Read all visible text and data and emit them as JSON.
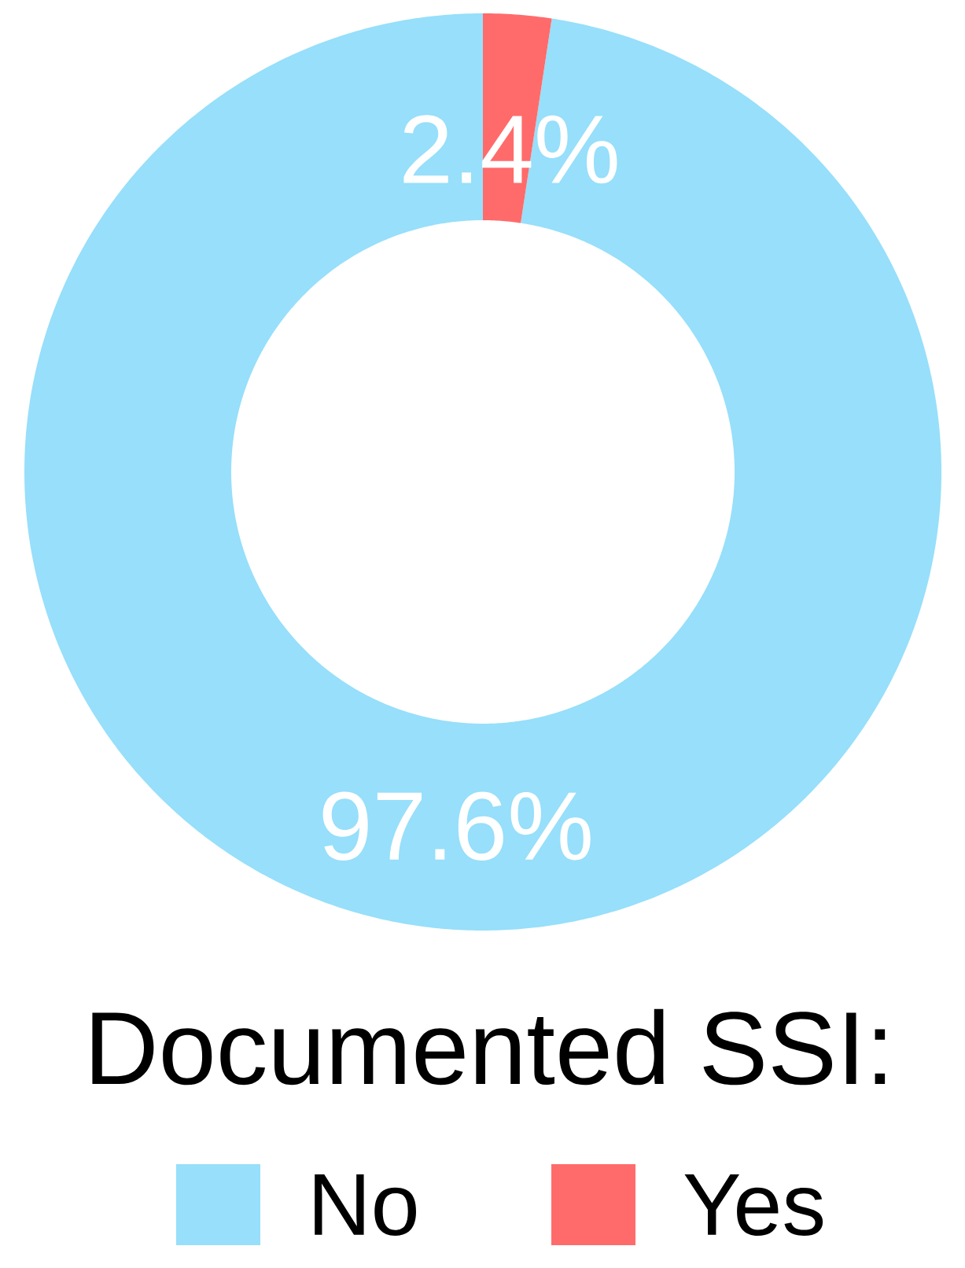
{
  "chart_data": {
    "type": "donut",
    "legend_title": "Documented SSI:",
    "legend": "bottom",
    "categories": [
      "No",
      "Yes"
    ],
    "values": [
      97.6,
      2.4
    ],
    "colors": [
      "#97dffa",
      "#ff6b6b"
    ],
    "value_labels": [
      "97.6%",
      "2.4%"
    ]
  }
}
